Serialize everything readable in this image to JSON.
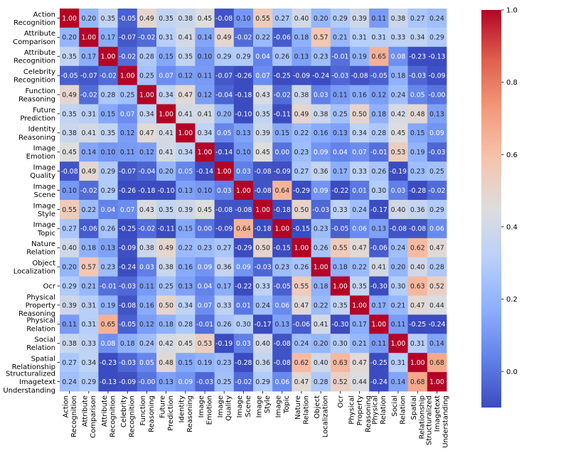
{
  "chart_data": {
    "type": "heatmap",
    "row_labels": [
      [
        "Action",
        "Recognition"
      ],
      [
        "Attribute",
        "Comparison"
      ],
      [
        "Attribute",
        "Recognition"
      ],
      [
        "Celebrity",
        "Recognition"
      ],
      [
        "Function",
        "Reasoning"
      ],
      [
        "Future",
        "Prediction"
      ],
      [
        "Identity",
        "Reasoning"
      ],
      [
        "Image",
        "Emotion"
      ],
      [
        "Image",
        "Quality"
      ],
      [
        "Image",
        "Scene"
      ],
      [
        "Image",
        "Style"
      ],
      [
        "Image",
        "Topic"
      ],
      [
        "Nature",
        "Relation"
      ],
      [
        "Object",
        "Localization"
      ],
      [
        "Ocr"
      ],
      [
        "Physical",
        "Property",
        "Reasoning"
      ],
      [
        "Physical",
        "Relation"
      ],
      [
        "Social",
        "Relation"
      ],
      [
        "Spatial",
        "Relationship"
      ],
      [
        "Structuralized",
        "Imagetext",
        "Understanding"
      ]
    ],
    "col_labels": [
      [
        "Action",
        "Recognition"
      ],
      [
        "Attribute",
        "Comparison"
      ],
      [
        "Attribute",
        "Recognition"
      ],
      [
        "Celebrity",
        "Recognition"
      ],
      [
        "Function",
        "Reasoning"
      ],
      [
        "Future",
        "Prediction"
      ],
      [
        "Identity",
        "Reasoning"
      ],
      [
        "Image",
        "Emotion"
      ],
      [
        "Image",
        "Quality"
      ],
      [
        "Image",
        "Scene"
      ],
      [
        "Image",
        "Style"
      ],
      [
        "Image",
        "Topic"
      ],
      [
        "Nature",
        "Relation"
      ],
      [
        "Object",
        "Localization"
      ],
      [
        "Ocr"
      ],
      [
        "Physical",
        "Property",
        "Reasoning"
      ],
      [
        "Physical",
        "Relation"
      ],
      [
        "Social",
        "Relation"
      ],
      [
        "Spatial",
        "Relationship"
      ],
      [
        "Structuralized",
        "Imagetext",
        "Understanding"
      ]
    ],
    "cell_labels": [
      [
        "1.00",
        "0.20",
        "0.35",
        "-0.05",
        "0.49",
        "0.35",
        "0.38",
        "0.45",
        "-0.08",
        "0.10",
        "0.55",
        "0.27",
        "0.40",
        "0.20",
        "0.29",
        "0.39",
        "0.11",
        "0.38",
        "0.27",
        "0.24"
      ],
      [
        "0.20",
        "1.00",
        "0.17",
        "-0.07",
        "-0.02",
        "0.31",
        "0.41",
        "0.14",
        "0.49",
        "-0.02",
        "0.22",
        "-0.06",
        "0.18",
        "0.57",
        "0.21",
        "0.31",
        "0.31",
        "0.33",
        "0.34",
        "0.29"
      ],
      [
        "0.35",
        "0.17",
        "1.00",
        "-0.02",
        "0.28",
        "0.15",
        "0.35",
        "0.10",
        "0.29",
        "0.29",
        "0.04",
        "0.26",
        "0.13",
        "0.23",
        "-0.01",
        "0.19",
        "0.65",
        "0.08",
        "-0.23",
        "-0.13"
      ],
      [
        "-0.05",
        "-0.07",
        "-0.02",
        "1.00",
        "0.25",
        "0.07",
        "0.12",
        "0.11",
        "-0.07",
        "-0.26",
        "0.07",
        "-0.25",
        "-0.09",
        "-0.24",
        "-0.03",
        "-0.08",
        "-0.05",
        "0.18",
        "-0.03",
        "-0.09"
      ],
      [
        "0.49",
        "-0.02",
        "0.28",
        "0.25",
        "1.00",
        "0.34",
        "0.47",
        "0.12",
        "-0.04",
        "-0.18",
        "0.43",
        "-0.02",
        "0.38",
        "0.03",
        "0.11",
        "0.16",
        "0.12",
        "0.24",
        "0.05",
        "-0.00"
      ],
      [
        "0.35",
        "0.31",
        "0.15",
        "0.07",
        "0.34",
        "1.00",
        "0.41",
        "0.41",
        "0.20",
        "-0.10",
        "0.35",
        "-0.11",
        "0.49",
        "0.38",
        "0.25",
        "0.50",
        "0.18",
        "0.42",
        "0.48",
        "0.13"
      ],
      [
        "0.38",
        "0.41",
        "0.35",
        "0.12",
        "0.47",
        "0.41",
        "1.00",
        "0.34",
        "0.05",
        "0.13",
        "0.39",
        "0.15",
        "0.22",
        "0.16",
        "0.13",
        "0.34",
        "0.28",
        "0.45",
        "0.15",
        "0.09"
      ],
      [
        "0.45",
        "0.14",
        "0.10",
        "0.11",
        "0.12",
        "0.41",
        "0.34",
        "1.00",
        "-0.14",
        "0.10",
        "0.45",
        "0.00",
        "0.23",
        "0.09",
        "0.04",
        "0.07",
        "-0.01",
        "0.53",
        "0.19",
        "-0.03"
      ],
      [
        "-0.08",
        "0.49",
        "0.29",
        "-0.07",
        "-0.04",
        "0.20",
        "0.05",
        "-0.14",
        "1.00",
        "0.03",
        "-0.08",
        "-0.09",
        "0.27",
        "0.36",
        "0.17",
        "0.33",
        "0.26",
        "-0.19",
        "0.23",
        "0.25"
      ],
      [
        "0.10",
        "-0.02",
        "0.29",
        "-0.26",
        "-0.18",
        "-0.10",
        "0.13",
        "0.10",
        "0.03",
        "1.00",
        "-0.08",
        "0.64",
        "-0.29",
        "0.09",
        "-0.22",
        "0.01",
        "0.30",
        "0.03",
        "-0.28",
        "-0.02"
      ],
      [
        "0.55",
        "0.22",
        "0.04",
        "0.07",
        "0.43",
        "0.35",
        "0.39",
        "0.45",
        "-0.08",
        "-0.08",
        "1.00",
        "-0.18",
        "0.50",
        "-0.03",
        "0.33",
        "0.24",
        "-0.17",
        "0.40",
        "0.36",
        "0.29"
      ],
      [
        "0.27",
        "-0.06",
        "0.26",
        "-0.25",
        "-0.02",
        "-0.11",
        "0.15",
        "0.00",
        "-0.09",
        "0.64",
        "-0.18",
        "1.00",
        "-0.15",
        "0.23",
        "-0.05",
        "0.06",
        "0.13",
        "-0.08",
        "-0.08",
        "0.06"
      ],
      [
        "0.40",
        "0.18",
        "0.13",
        "-0.09",
        "0.38",
        "0.49",
        "0.22",
        "0.23",
        "0.27",
        "-0.29",
        "0.50",
        "-0.15",
        "1.00",
        "0.26",
        "0.55",
        "0.47",
        "-0.06",
        "0.24",
        "0.62",
        "0.47"
      ],
      [
        "0.20",
        "0.57",
        "0.23",
        "-0.24",
        "0.03",
        "0.38",
        "0.16",
        "0.09",
        "0.36",
        "0.09",
        "-0.03",
        "0.23",
        "0.26",
        "1.00",
        "0.18",
        "0.22",
        "0.41",
        "0.20",
        "0.40",
        "0.28"
      ],
      [
        "0.29",
        "0.21",
        "-0.01",
        "-0.03",
        "0.11",
        "0.25",
        "0.13",
        "0.04",
        "0.17",
        "-0.22",
        "0.33",
        "-0.05",
        "0.55",
        "0.18",
        "1.00",
        "0.35",
        "-0.30",
        "0.30",
        "0.63",
        "0.52"
      ],
      [
        "0.39",
        "0.31",
        "0.19",
        "-0.08",
        "0.16",
        "0.50",
        "0.34",
        "0.07",
        "0.33",
        "0.01",
        "0.24",
        "0.06",
        "0.47",
        "0.22",
        "0.35",
        "1.00",
        "0.17",
        "0.21",
        "0.47",
        "0.44"
      ],
      [
        "0.11",
        "0.31",
        "0.65",
        "-0.05",
        "0.12",
        "0.18",
        "0.28",
        "-0.01",
        "0.26",
        "0.30",
        "-0.17",
        "0.13",
        "-0.06",
        "0.41",
        "-0.30",
        "0.17",
        "1.00",
        "0.11",
        "-0.25",
        "-0.24"
      ],
      [
        "0.38",
        "0.33",
        "0.08",
        "0.18",
        "0.24",
        "0.42",
        "0.45",
        "0.53",
        "-0.19",
        "0.03",
        "0.40",
        "-0.08",
        "0.24",
        "0.20",
        "0.30",
        "0.21",
        "0.11",
        "1.00",
        "0.31",
        "0.14"
      ],
      [
        "0.27",
        "0.34",
        "-0.23",
        "-0.03",
        "0.05",
        "0.48",
        "0.15",
        "0.19",
        "0.23",
        "-0.28",
        "0.36",
        "-0.08",
        "0.62",
        "0.40",
        "0.63",
        "0.47",
        "-0.25",
        "0.31",
        "1.00",
        "0.68"
      ],
      [
        "0.24",
        "0.29",
        "-0.13",
        "-0.09",
        "-0.00",
        "0.13",
        "0.09",
        "-0.03",
        "0.25",
        "-0.02",
        "0.29",
        "0.06",
        "0.47",
        "0.28",
        "0.52",
        "0.44",
        "-0.24",
        "0.14",
        "0.68",
        "1.00"
      ]
    ],
    "color_scale": {
      "name": "coolwarm",
      "vmin": -0.1,
      "vmax": 1.0,
      "ticks": [
        "0.0",
        "0.2",
        "0.4",
        "0.6",
        "0.8",
        "1.0"
      ],
      "tick_values": [
        0.0,
        0.2,
        0.4,
        0.6,
        0.8,
        1.0
      ]
    }
  }
}
